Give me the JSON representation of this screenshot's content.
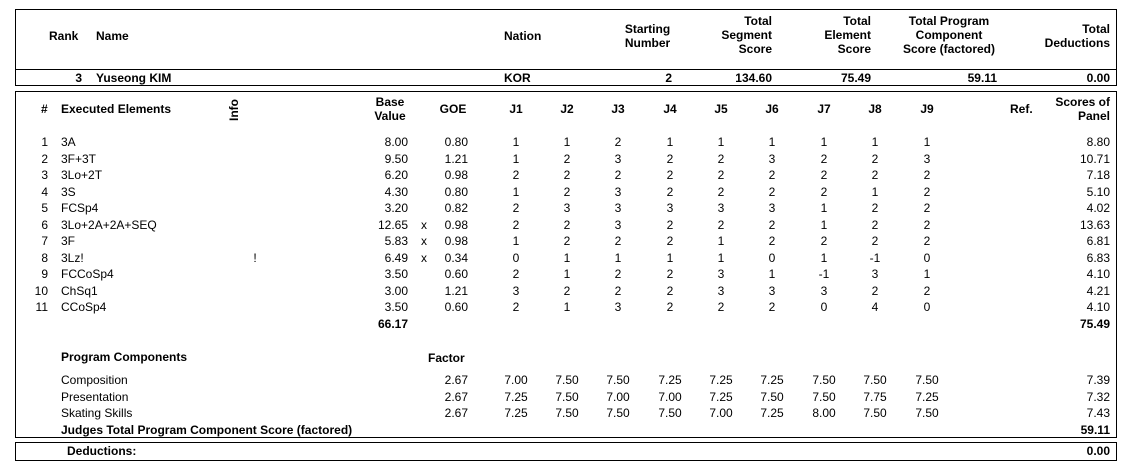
{
  "skater_header": {
    "rank_label": "Rank",
    "name_label": "Name",
    "nation_label": "Nation",
    "starting_number_label": [
      "Starting",
      "Number"
    ],
    "total_segment_label": [
      "Total",
      "Segment",
      "Score"
    ],
    "total_element_label": [
      "Total",
      "Element",
      "Score"
    ],
    "total_pcs_label": [
      "Total Program",
      "Component",
      "Score (factored)"
    ],
    "total_deductions_label": [
      "Total",
      "Deductions"
    ]
  },
  "skater": {
    "rank": "3",
    "name": "Yuseong KIM",
    "nation": "KOR",
    "starting_number": "2",
    "total_segment_score": "134.60",
    "total_element_score": "75.49",
    "total_pcs": "59.11",
    "total_deductions": "0.00"
  },
  "elements_header": {
    "num": "#",
    "executed": "Executed Elements",
    "info": "Info",
    "base_value": [
      "Base",
      "Value"
    ],
    "goe": "GOE",
    "judges": [
      "J1",
      "J2",
      "J3",
      "J4",
      "J5",
      "J6",
      "J7",
      "J8",
      "J9"
    ],
    "ref": "Ref.",
    "scores_of_panel": [
      "Scores of",
      "Panel"
    ]
  },
  "elements": [
    {
      "num": "1",
      "name": "3A",
      "info": "",
      "bv": "8.00",
      "x": "",
      "goe": "0.80",
      "j": [
        "1",
        "1",
        "2",
        "1",
        "1",
        "1",
        "1",
        "1",
        "1"
      ],
      "score": "8.80"
    },
    {
      "num": "2",
      "name": "3F+3T",
      "info": "",
      "bv": "9.50",
      "x": "",
      "goe": "1.21",
      "j": [
        "1",
        "2",
        "3",
        "2",
        "2",
        "3",
        "2",
        "2",
        "3"
      ],
      "score": "10.71"
    },
    {
      "num": "3",
      "name": "3Lo+2T",
      "info": "",
      "bv": "6.20",
      "x": "",
      "goe": "0.98",
      "j": [
        "2",
        "2",
        "2",
        "2",
        "2",
        "2",
        "2",
        "2",
        "2"
      ],
      "score": "7.18"
    },
    {
      "num": "4",
      "name": "3S",
      "info": "",
      "bv": "4.30",
      "x": "",
      "goe": "0.80",
      "j": [
        "1",
        "2",
        "3",
        "2",
        "2",
        "2",
        "2",
        "1",
        "2"
      ],
      "score": "5.10"
    },
    {
      "num": "5",
      "name": "FCSp4",
      "info": "",
      "bv": "3.20",
      "x": "",
      "goe": "0.82",
      "j": [
        "2",
        "3",
        "3",
        "3",
        "3",
        "3",
        "1",
        "2",
        "2"
      ],
      "score": "4.02"
    },
    {
      "num": "6",
      "name": "3Lo+2A+2A+SEQ",
      "info": "",
      "bv": "12.65",
      "x": "x",
      "goe": "0.98",
      "j": [
        "2",
        "2",
        "3",
        "2",
        "2",
        "2",
        "1",
        "2",
        "2"
      ],
      "score": "13.63"
    },
    {
      "num": "7",
      "name": "3F",
      "info": "",
      "bv": "5.83",
      "x": "x",
      "goe": "0.98",
      "j": [
        "1",
        "2",
        "2",
        "2",
        "1",
        "2",
        "2",
        "2",
        "2"
      ],
      "score": "6.81"
    },
    {
      "num": "8",
      "name": "3Lz!",
      "info": "!",
      "bv": "6.49",
      "x": "x",
      "goe": "0.34",
      "j": [
        "0",
        "1",
        "1",
        "1",
        "1",
        "0",
        "1",
        "-1",
        "0"
      ],
      "score": "6.83"
    },
    {
      "num": "9",
      "name": "FCCoSp4",
      "info": "",
      "bv": "3.50",
      "x": "",
      "goe": "0.60",
      "j": [
        "2",
        "1",
        "2",
        "2",
        "3",
        "1",
        "-1",
        "3",
        "1"
      ],
      "score": "4.10"
    },
    {
      "num": "10",
      "name": "ChSq1",
      "info": "",
      "bv": "3.00",
      "x": "",
      "goe": "1.21",
      "j": [
        "3",
        "2",
        "2",
        "2",
        "3",
        "3",
        "3",
        "2",
        "2"
      ],
      "score": "4.21"
    },
    {
      "num": "11",
      "name": "CCoSp4",
      "info": "",
      "bv": "3.50",
      "x": "",
      "goe": "0.60",
      "j": [
        "2",
        "1",
        "3",
        "2",
        "2",
        "2",
        "0",
        "4",
        "0"
      ],
      "score": "4.10"
    }
  ],
  "elements_total_bv": "66.17",
  "elements_total_score": "75.49",
  "components": {
    "title": "Program Components",
    "factor_label": "Factor",
    "rows": [
      {
        "name": "Composition",
        "factor": "2.67",
        "j": [
          "7.00",
          "7.50",
          "7.50",
          "7.25",
          "7.25",
          "7.25",
          "7.50",
          "7.50",
          "7.50"
        ],
        "score": "7.39"
      },
      {
        "name": "Presentation",
        "factor": "2.67",
        "j": [
          "7.25",
          "7.50",
          "7.00",
          "7.00",
          "7.25",
          "7.50",
          "7.50",
          "7.75",
          "7.25"
        ],
        "score": "7.32"
      },
      {
        "name": "Skating Skills",
        "factor": "2.67",
        "j": [
          "7.25",
          "7.50",
          "7.50",
          "7.50",
          "7.00",
          "7.25",
          "8.00",
          "7.50",
          "7.50"
        ],
        "score": "7.43"
      }
    ],
    "total_label": "Judges Total Program Component Score (factored)",
    "total_value": "59.11"
  },
  "deductions": {
    "label": "Deductions:",
    "value": "0.00"
  }
}
